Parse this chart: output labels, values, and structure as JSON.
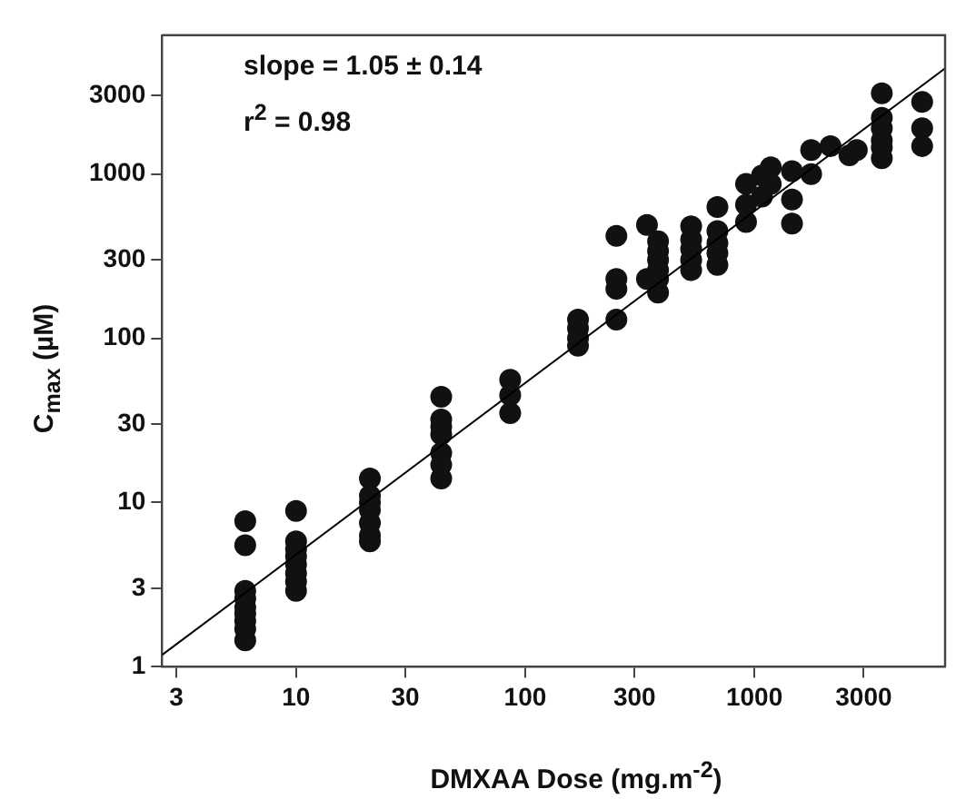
{
  "chart_data": {
    "type": "scatter",
    "xlabel": "DMXAA Dose (mg.m$^{-2}$)",
    "ylabel": "C$_{max}$ (µM)",
    "annotations": [
      "slope = 1.05 ± 0.14",
      "r$^{2}$ = 0.98"
    ],
    "log": "xy",
    "xlim": [
      2.6,
      6800
    ],
    "ylim": [
      1,
      7000
    ],
    "xticks": [
      3,
      10,
      30,
      100,
      300,
      1000,
      3000
    ],
    "yticks": [
      1,
      3,
      10,
      30,
      100,
      300,
      1000,
      3000
    ],
    "grid": false,
    "legend": false,
    "marker": "circle",
    "series": [
      {
        "type": "scatter",
        "color": "#111111",
        "x": [
          6,
          6,
          6,
          6,
          6,
          6,
          6,
          6,
          6,
          10,
          10,
          10,
          10,
          10,
          10,
          10,
          10,
          21,
          21,
          21,
          21,
          21,
          21,
          21,
          43,
          43,
          43,
          43,
          43,
          43,
          43,
          86,
          86,
          86,
          170,
          170,
          170,
          170,
          250,
          250,
          250,
          250,
          340,
          340,
          380,
          380,
          380,
          380,
          380,
          380,
          530,
          530,
          530,
          530,
          530,
          690,
          690,
          690,
          690,
          690,
          920,
          920,
          920,
          1080,
          1080,
          1180,
          1180,
          1460,
          1460,
          1460,
          1770,
          1770,
          2150,
          2600,
          2800,
          3600,
          3600,
          3600,
          3600,
          3600,
          3600,
          5400,
          5400,
          5400
        ],
        "values": [
          7.7,
          5.5,
          2.9,
          2.6,
          2.3,
          2.1,
          1.9,
          1.7,
          1.45,
          8.9,
          5.8,
          5.2,
          4.7,
          4.2,
          3.7,
          3.3,
          2.9,
          14,
          11,
          10,
          9,
          7.5,
          6.3,
          5.8,
          44,
          32,
          29,
          26,
          20,
          17,
          14,
          56,
          45,
          35,
          130,
          115,
          100,
          90,
          420,
          230,
          200,
          130,
          490,
          230,
          390,
          340,
          300,
          260,
          230,
          190,
          480,
          400,
          350,
          300,
          260,
          630,
          450,
          380,
          330,
          280,
          870,
          650,
          510,
          980,
          730,
          1100,
          870,
          1040,
          700,
          500,
          1400,
          1000,
          1480,
          1300,
          1400,
          3100,
          2200,
          1900,
          1600,
          1250,
          1450,
          2750,
          1900,
          1480
        ]
      },
      {
        "type": "line",
        "color": "#000000",
        "marker": "none",
        "line_style": "solid",
        "x": [
          2.6,
          6800
        ],
        "values": [
          1.18,
          4400
        ]
      }
    ]
  }
}
